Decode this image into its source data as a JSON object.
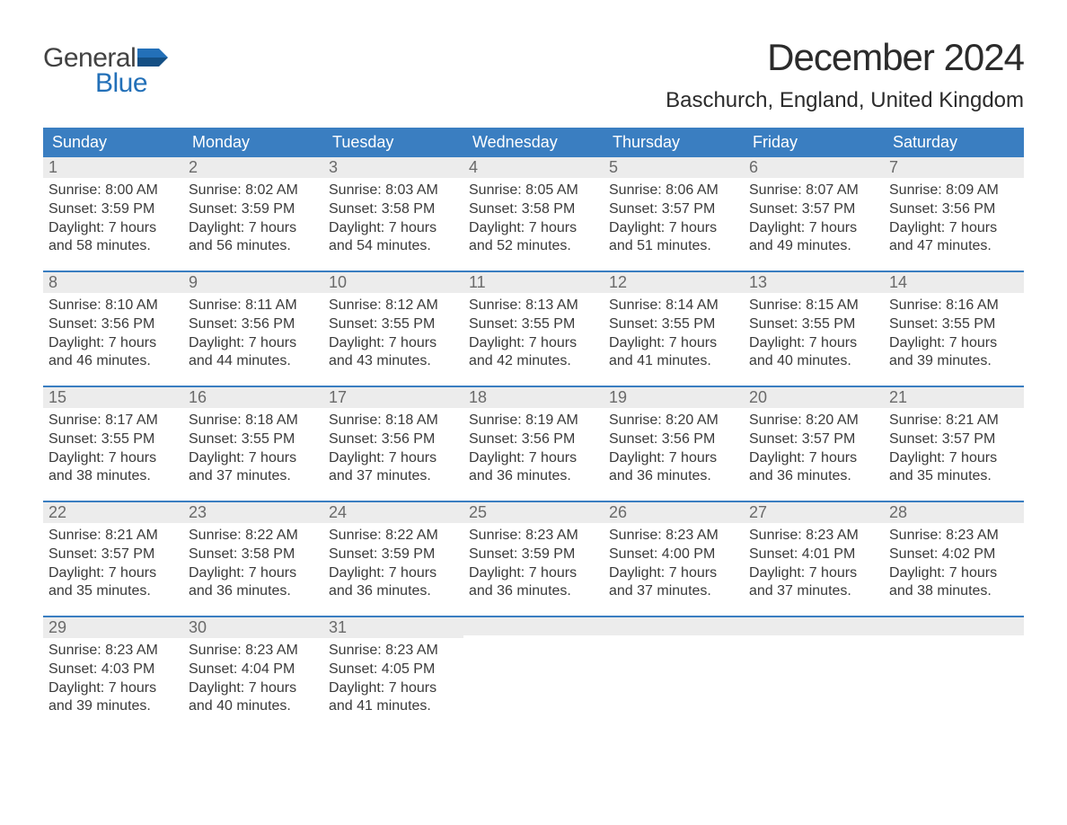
{
  "logo": {
    "word1": "General",
    "word2": "Blue",
    "flag_color": "#2370b8",
    "text1_color": "#424242"
  },
  "title": "December 2024",
  "location": "Baschurch, England, United Kingdom",
  "colors": {
    "header_bg": "#3a7ec1",
    "header_text": "#ffffff",
    "daynum_bg": "#ececec",
    "daynum_text": "#6a6a6a",
    "body_text": "#3a3a3a",
    "week_divider": "#3a7ec1",
    "page_bg": "#ffffff"
  },
  "day_headers": [
    "Sunday",
    "Monday",
    "Tuesday",
    "Wednesday",
    "Thursday",
    "Friday",
    "Saturday"
  ],
  "weeks": [
    [
      {
        "num": "1",
        "sunrise": "8:00 AM",
        "sunset": "3:59 PM",
        "daylight_l1": "Daylight: 7 hours",
        "daylight_l2": "and 58 minutes."
      },
      {
        "num": "2",
        "sunrise": "8:02 AM",
        "sunset": "3:59 PM",
        "daylight_l1": "Daylight: 7 hours",
        "daylight_l2": "and 56 minutes."
      },
      {
        "num": "3",
        "sunrise": "8:03 AM",
        "sunset": "3:58 PM",
        "daylight_l1": "Daylight: 7 hours",
        "daylight_l2": "and 54 minutes."
      },
      {
        "num": "4",
        "sunrise": "8:05 AM",
        "sunset": "3:58 PM",
        "daylight_l1": "Daylight: 7 hours",
        "daylight_l2": "and 52 minutes."
      },
      {
        "num": "5",
        "sunrise": "8:06 AM",
        "sunset": "3:57 PM",
        "daylight_l1": "Daylight: 7 hours",
        "daylight_l2": "and 51 minutes."
      },
      {
        "num": "6",
        "sunrise": "8:07 AM",
        "sunset": "3:57 PM",
        "daylight_l1": "Daylight: 7 hours",
        "daylight_l2": "and 49 minutes."
      },
      {
        "num": "7",
        "sunrise": "8:09 AM",
        "sunset": "3:56 PM",
        "daylight_l1": "Daylight: 7 hours",
        "daylight_l2": "and 47 minutes."
      }
    ],
    [
      {
        "num": "8",
        "sunrise": "8:10 AM",
        "sunset": "3:56 PM",
        "daylight_l1": "Daylight: 7 hours",
        "daylight_l2": "and 46 minutes."
      },
      {
        "num": "9",
        "sunrise": "8:11 AM",
        "sunset": "3:56 PM",
        "daylight_l1": "Daylight: 7 hours",
        "daylight_l2": "and 44 minutes."
      },
      {
        "num": "10",
        "sunrise": "8:12 AM",
        "sunset": "3:55 PM",
        "daylight_l1": "Daylight: 7 hours",
        "daylight_l2": "and 43 minutes."
      },
      {
        "num": "11",
        "sunrise": "8:13 AM",
        "sunset": "3:55 PM",
        "daylight_l1": "Daylight: 7 hours",
        "daylight_l2": "and 42 minutes."
      },
      {
        "num": "12",
        "sunrise": "8:14 AM",
        "sunset": "3:55 PM",
        "daylight_l1": "Daylight: 7 hours",
        "daylight_l2": "and 41 minutes."
      },
      {
        "num": "13",
        "sunrise": "8:15 AM",
        "sunset": "3:55 PM",
        "daylight_l1": "Daylight: 7 hours",
        "daylight_l2": "and 40 minutes."
      },
      {
        "num": "14",
        "sunrise": "8:16 AM",
        "sunset": "3:55 PM",
        "daylight_l1": "Daylight: 7 hours",
        "daylight_l2": "and 39 minutes."
      }
    ],
    [
      {
        "num": "15",
        "sunrise": "8:17 AM",
        "sunset": "3:55 PM",
        "daylight_l1": "Daylight: 7 hours",
        "daylight_l2": "and 38 minutes."
      },
      {
        "num": "16",
        "sunrise": "8:18 AM",
        "sunset": "3:55 PM",
        "daylight_l1": "Daylight: 7 hours",
        "daylight_l2": "and 37 minutes."
      },
      {
        "num": "17",
        "sunrise": "8:18 AM",
        "sunset": "3:56 PM",
        "daylight_l1": "Daylight: 7 hours",
        "daylight_l2": "and 37 minutes."
      },
      {
        "num": "18",
        "sunrise": "8:19 AM",
        "sunset": "3:56 PM",
        "daylight_l1": "Daylight: 7 hours",
        "daylight_l2": "and 36 minutes."
      },
      {
        "num": "19",
        "sunrise": "8:20 AM",
        "sunset": "3:56 PM",
        "daylight_l1": "Daylight: 7 hours",
        "daylight_l2": "and 36 minutes."
      },
      {
        "num": "20",
        "sunrise": "8:20 AM",
        "sunset": "3:57 PM",
        "daylight_l1": "Daylight: 7 hours",
        "daylight_l2": "and 36 minutes."
      },
      {
        "num": "21",
        "sunrise": "8:21 AM",
        "sunset": "3:57 PM",
        "daylight_l1": "Daylight: 7 hours",
        "daylight_l2": "and 35 minutes."
      }
    ],
    [
      {
        "num": "22",
        "sunrise": "8:21 AM",
        "sunset": "3:57 PM",
        "daylight_l1": "Daylight: 7 hours",
        "daylight_l2": "and 35 minutes."
      },
      {
        "num": "23",
        "sunrise": "8:22 AM",
        "sunset": "3:58 PM",
        "daylight_l1": "Daylight: 7 hours",
        "daylight_l2": "and 36 minutes."
      },
      {
        "num": "24",
        "sunrise": "8:22 AM",
        "sunset": "3:59 PM",
        "daylight_l1": "Daylight: 7 hours",
        "daylight_l2": "and 36 minutes."
      },
      {
        "num": "25",
        "sunrise": "8:23 AM",
        "sunset": "3:59 PM",
        "daylight_l1": "Daylight: 7 hours",
        "daylight_l2": "and 36 minutes."
      },
      {
        "num": "26",
        "sunrise": "8:23 AM",
        "sunset": "4:00 PM",
        "daylight_l1": "Daylight: 7 hours",
        "daylight_l2": "and 37 minutes."
      },
      {
        "num": "27",
        "sunrise": "8:23 AM",
        "sunset": "4:01 PM",
        "daylight_l1": "Daylight: 7 hours",
        "daylight_l2": "and 37 minutes."
      },
      {
        "num": "28",
        "sunrise": "8:23 AM",
        "sunset": "4:02 PM",
        "daylight_l1": "Daylight: 7 hours",
        "daylight_l2": "and 38 minutes."
      }
    ],
    [
      {
        "num": "29",
        "sunrise": "8:23 AM",
        "sunset": "4:03 PM",
        "daylight_l1": "Daylight: 7 hours",
        "daylight_l2": "and 39 minutes."
      },
      {
        "num": "30",
        "sunrise": "8:23 AM",
        "sunset": "4:04 PM",
        "daylight_l1": "Daylight: 7 hours",
        "daylight_l2": "and 40 minutes."
      },
      {
        "num": "31",
        "sunrise": "8:23 AM",
        "sunset": "4:05 PM",
        "daylight_l1": "Daylight: 7 hours",
        "daylight_l2": "and 41 minutes."
      },
      null,
      null,
      null,
      null
    ]
  ],
  "labels": {
    "sunrise_prefix": "Sunrise: ",
    "sunset_prefix": "Sunset: "
  }
}
